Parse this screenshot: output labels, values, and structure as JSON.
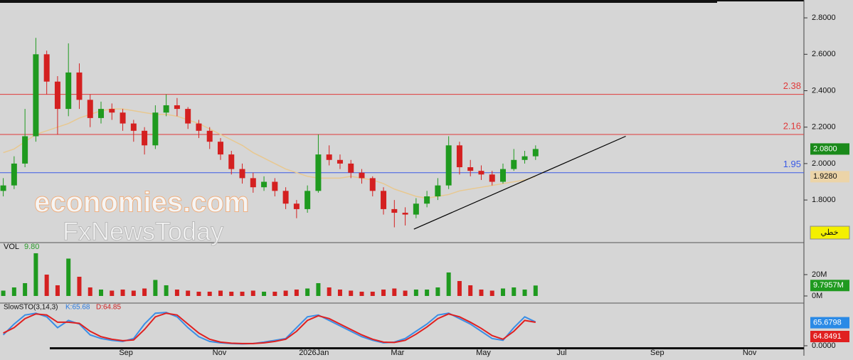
{
  "chart_data": {
    "type": "candlestick",
    "x": [
      0,
      1,
      2,
      3,
      4,
      5,
      6,
      7,
      8,
      9,
      10,
      11,
      12,
      13,
      14,
      15,
      16,
      17,
      18,
      19,
      20,
      21,
      22,
      23,
      24,
      25,
      26,
      27,
      28,
      29,
      30,
      31,
      32,
      33,
      34,
      35,
      36,
      37,
      38,
      39,
      40,
      41,
      42,
      43,
      44,
      45,
      46,
      47,
      48,
      49
    ],
    "open": [
      1.85,
      1.88,
      2.0,
      2.15,
      2.6,
      2.45,
      2.3,
      2.5,
      2.35,
      2.25,
      2.3,
      2.28,
      2.22,
      2.18,
      2.1,
      2.28,
      2.32,
      2.3,
      2.22,
      2.18,
      2.12,
      2.05,
      1.97,
      1.92,
      1.87,
      1.9,
      1.85,
      1.78,
      1.75,
      1.85,
      2.05,
      2.02,
      2.0,
      1.95,
      1.92,
      1.85,
      1.75,
      1.73,
      1.72,
      1.78,
      1.82,
      1.88,
      2.1,
      1.98,
      1.96,
      1.94,
      1.9,
      1.97,
      2.02,
      2.04
    ],
    "high": [
      1.92,
      2.04,
      2.3,
      2.69,
      2.62,
      2.48,
      2.66,
      2.55,
      2.38,
      2.34,
      2.33,
      2.3,
      2.24,
      2.2,
      2.32,
      2.38,
      2.36,
      2.31,
      2.24,
      2.2,
      2.14,
      2.07,
      2.0,
      1.95,
      1.93,
      1.92,
      1.87,
      1.8,
      1.88,
      2.16,
      2.1,
      2.05,
      2.02,
      1.97,
      1.93,
      1.87,
      1.8,
      1.76,
      1.81,
      1.85,
      1.92,
      2.15,
      2.12,
      2.02,
      1.99,
      1.96,
      2.0,
      2.08,
      2.07,
      2.1
    ],
    "low": [
      1.82,
      1.86,
      1.98,
      2.12,
      2.38,
      2.16,
      2.26,
      2.3,
      2.2,
      2.22,
      2.24,
      2.18,
      2.12,
      2.05,
      2.08,
      2.26,
      2.26,
      2.19,
      2.14,
      2.08,
      2.02,
      1.94,
      1.89,
      1.84,
      1.85,
      1.82,
      1.75,
      1.7,
      1.73,
      1.84,
      1.99,
      1.97,
      1.92,
      1.89,
      1.82,
      1.72,
      1.65,
      1.66,
      1.7,
      1.76,
      1.8,
      1.86,
      1.94,
      1.93,
      1.91,
      1.88,
      1.89,
      1.96,
      2.0,
      2.02
    ],
    "close": [
      1.88,
      2.0,
      2.15,
      2.6,
      2.45,
      2.3,
      2.5,
      2.35,
      2.25,
      2.3,
      2.28,
      2.22,
      2.18,
      2.1,
      2.28,
      2.32,
      2.3,
      2.22,
      2.18,
      2.12,
      2.05,
      1.97,
      1.92,
      1.87,
      1.9,
      1.85,
      1.78,
      1.75,
      1.85,
      2.05,
      2.02,
      2.0,
      1.95,
      1.92,
      1.85,
      1.75,
      1.73,
      1.72,
      1.78,
      1.82,
      1.88,
      2.1,
      1.98,
      1.96,
      1.94,
      1.9,
      1.97,
      2.02,
      2.04,
      2.08
    ],
    "up_color": "#1f9a1f",
    "down_color": "#d42020",
    "ma": {
      "color": "#e8c890",
      "values": [
        2.06,
        2.08,
        2.12,
        2.16,
        2.18,
        2.2,
        2.22,
        2.25,
        2.27,
        2.29,
        2.3,
        2.3,
        2.29,
        2.28,
        2.27,
        2.27,
        2.26,
        2.24,
        2.22,
        2.19,
        2.16,
        2.13,
        2.1,
        2.06,
        2.03,
        2.0,
        1.97,
        1.95,
        1.93,
        1.92,
        1.92,
        1.92,
        1.93,
        1.92,
        1.91,
        1.89,
        1.86,
        1.84,
        1.82,
        1.81,
        1.82,
        1.83,
        1.85,
        1.86,
        1.87,
        1.88,
        1.89,
        1.9,
        1.91,
        1.93
      ]
    },
    "levels": [
      {
        "value": 2.38,
        "color": "#e03a3a"
      },
      {
        "value": 2.16,
        "color": "#e03a3a"
      },
      {
        "value": 1.95,
        "color": "#3a5ae6"
      }
    ],
    "trendline": {
      "x": [
        37.8,
        57.3
      ],
      "y": [
        1.64,
        2.15
      ],
      "color": "#000000"
    },
    "price_labels": [
      {
        "value": 2.08,
        "label": "2.0800",
        "color": "#1a8a1a",
        "text_color": "#ffffff"
      },
      {
        "value": 1.928,
        "label": "1.9280",
        "color": "#ecd4a8",
        "text_color": "#111111"
      }
    ],
    "xlim": [
      -0.3,
      73.7
    ],
    "xticks": [
      {
        "value": 11.3,
        "label": "Sep"
      },
      {
        "value": 19.9,
        "label": "Nov"
      },
      {
        "value": 28.6,
        "label": "2026Jan"
      },
      {
        "value": 36.3,
        "label": "Mar"
      },
      {
        "value": 44.2,
        "label": "May"
      },
      {
        "value": 51.4,
        "label": "Jul"
      },
      {
        "value": 60.2,
        "label": "Sep"
      },
      {
        "value": 68.7,
        "label": "Nov"
      }
    ],
    "ylim": [
      1.57,
      2.898
    ],
    "yticks": [
      {
        "value": 1.8,
        "label": "1.8000"
      },
      {
        "value": 2.0,
        "label": "2.0000"
      },
      {
        "value": 2.2,
        "label": "2.2000"
      },
      {
        "value": 2.4,
        "label": "2.4000"
      },
      {
        "value": 2.6,
        "label": "2.6000"
      },
      {
        "value": 2.8,
        "label": "2.8000"
      }
    ],
    "style_button": "خطي",
    "watermark": [
      "economies.com",
      "FxNewsToday"
    ],
    "volume": {
      "title": "VOL",
      "last_label": "9.80",
      "values": [
        5,
        8,
        12,
        40,
        20,
        10,
        35,
        18,
        8,
        6,
        5,
        6,
        5,
        7,
        15,
        10,
        6,
        5,
        4,
        4,
        5,
        4,
        4,
        5,
        4,
        4,
        5,
        6,
        7,
        12,
        8,
        6,
        5,
        4,
        4,
        6,
        7,
        5,
        6,
        6,
        8,
        22,
        14,
        10,
        6,
        5,
        7,
        8,
        6,
        9.7957
      ],
      "value_label": "9.7957M",
      "ylim": [
        -6,
        49.3
      ],
      "yticks": [
        {
          "value": 20,
          "label": "20M"
        },
        {
          "value": 0,
          "label": "0M"
        }
      ]
    },
    "stochastic": {
      "title": "SlowSTO(3,14,3)",
      "k_label": "K:65.68",
      "d_label": "D:64.85",
      "k": {
        "color": "#3a8ee6",
        "label": "65.6798",
        "values": [
          30,
          60,
          85,
          90,
          80,
          50,
          70,
          60,
          30,
          20,
          15,
          12,
          20,
          60,
          90,
          92,
          80,
          50,
          25,
          12,
          8,
          6,
          5,
          6,
          10,
          15,
          20,
          50,
          80,
          85,
          70,
          55,
          40,
          25,
          15,
          8,
          10,
          20,
          40,
          60,
          85,
          90,
          75,
          60,
          40,
          20,
          15,
          50,
          80,
          65.68
        ]
      },
      "d": {
        "color": "#e02020",
        "label": "64.8491",
        "values": [
          35,
          50,
          75,
          88,
          85,
          65,
          65,
          62,
          40,
          25,
          18,
          14,
          16,
          45,
          80,
          90,
          85,
          60,
          35,
          18,
          10,
          7,
          6,
          6,
          8,
          12,
          18,
          40,
          70,
          83,
          75,
          60,
          45,
          30,
          18,
          10,
          9,
          15,
          32,
          52,
          75,
          88,
          80,
          65,
          48,
          28,
          18,
          40,
          70,
          64.85
        ]
      },
      "ylim": [
        -4,
        116
      ],
      "yticks": [
        {
          "value": 0,
          "label": "0.0000"
        }
      ]
    }
  }
}
